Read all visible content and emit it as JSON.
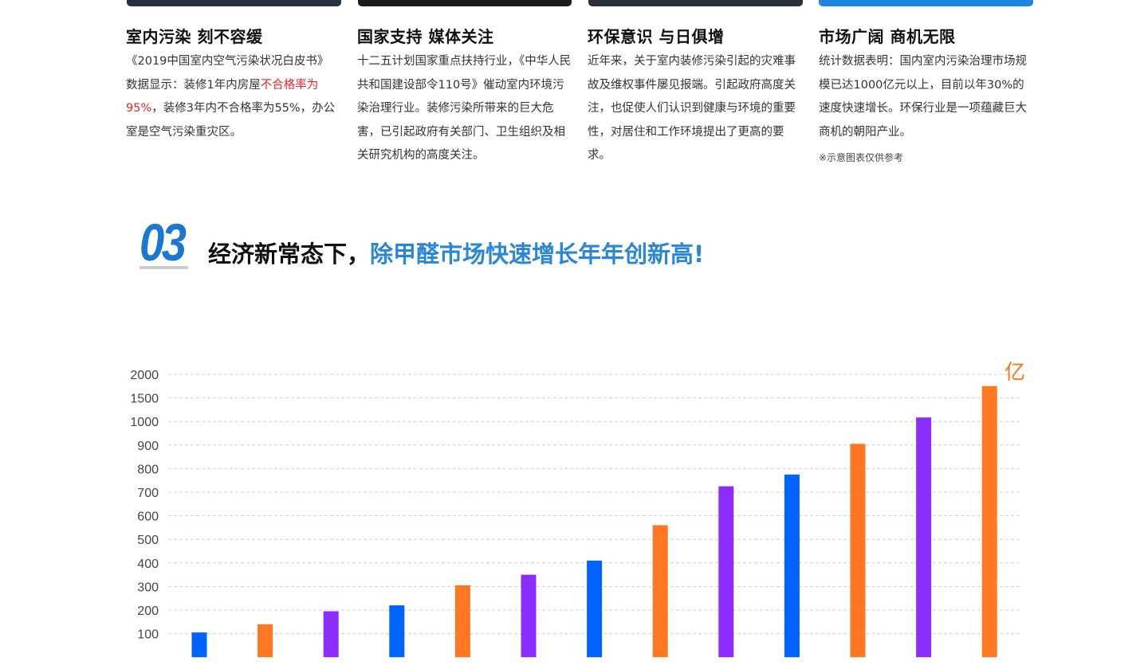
{
  "top_images": [
    {
      "color": "#2a3040"
    },
    {
      "color": "#1a1a1a"
    },
    {
      "color": "#2b2f3a"
    },
    {
      "color": "#1f86df"
    }
  ],
  "columns": [
    {
      "heading": "室内污染 刻不容缓",
      "text_before": "《2019中国室内空气污染状况白皮书》数据显示：装修1年内房屋",
      "highlight": "不合格率为95%",
      "text_after": "，装修3年内不合格率为55%，办公室是空气污染重灾区。"
    },
    {
      "heading": "国家支持 媒体关注",
      "text": "十二五计划国家重点扶持行业，《中华人民共和国建设部令110号》催动室内环境污染治理行业。装修污染所带来的巨大危害，已引起政府有关部门、卫生组织及相关研究机构的高度关注。"
    },
    {
      "heading": "环保意识 与日俱增",
      "text": "近年来，关于室内装修污染引起的灾难事故及维权事件屡见报端。引起政府高度关注，也促使人们认识到健康与环境的重要性，对居住和工作环境提出了更高的要求。"
    },
    {
      "heading": "市场广阔 商机无限",
      "text": "统计数据表明：国内室内污染治理市场规模已达1000亿元以上，目前以年30%的速度快速增长。环保行业是一项蕴藏巨大商机的朝阳产业。",
      "note": "※示意图表仅供参考"
    }
  ],
  "section": {
    "number": "03",
    "title_black": "经济新常态下，",
    "title_blue": "除甲醛市场快速增长年年创新高!"
  },
  "chart_data": {
    "type": "bar",
    "title": "",
    "unit": "亿",
    "yticks": [
      100,
      200,
      300,
      400,
      500,
      600,
      700,
      800,
      900,
      1000,
      1500,
      2000
    ],
    "ytick_labels": [
      "100",
      "200",
      "300",
      "400",
      "500",
      "600",
      "700",
      "800",
      "900",
      "1000",
      "1500",
      "2000"
    ],
    "ylim": [
      0,
      2000
    ],
    "scale": "non-linear (equally spaced ticks)",
    "grid": true,
    "values": [
      105,
      140,
      195,
      220,
      305,
      350,
      410,
      560,
      725,
      775,
      905,
      1085,
      1750
    ],
    "colors": [
      "#0062ff",
      "#ff7722",
      "#8b2dff",
      "#0062ff",
      "#ff7722",
      "#8b2dff",
      "#0062ff",
      "#ff7722",
      "#8b2dff",
      "#0062ff",
      "#ff7722",
      "#8b2dff",
      "#ff7722"
    ]
  }
}
